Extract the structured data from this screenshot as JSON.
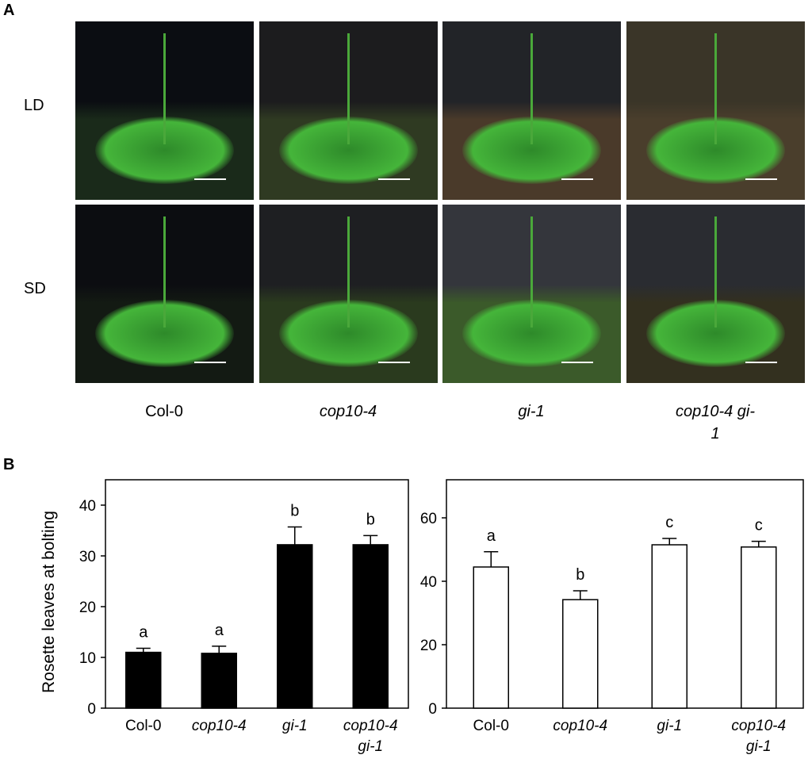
{
  "panel_a": {
    "label": "A",
    "rows": [
      "LD",
      "SD"
    ],
    "columns": [
      "Col-0",
      "cop10-4",
      "gi-1",
      "cop10-4 gi-1"
    ]
  },
  "panel_b_label": "B",
  "chart_data": [
    {
      "type": "bar",
      "y_label": "Rosette leaves at bolting",
      "categories": [
        "Col-0",
        "cop10-4",
        "gi-1",
        "cop10-4 gi-1"
      ],
      "series": [
        {
          "color": "#000000",
          "values": [
            11,
            10.8,
            32.2,
            32.2
          ],
          "errors": [
            0.8,
            1.4,
            3.5,
            1.8
          ]
        }
      ],
      "annotations": [
        "a",
        "a",
        "b",
        "b"
      ],
      "ylim": [
        0,
        45
      ],
      "yticks": [
        0,
        10,
        20,
        30,
        40
      ]
    },
    {
      "type": "bar",
      "categories": [
        "Col-0",
        "cop10-4",
        "gi-1",
        "cop10-4 gi-1"
      ],
      "series": [
        {
          "color": "#ffffff",
          "values": [
            44.5,
            34.2,
            51.5,
            50.8
          ],
          "errors": [
            4.8,
            2.8,
            2,
            1.8
          ]
        }
      ],
      "annotations": [
        "a",
        "b",
        "c",
        "c"
      ],
      "ylim": [
        0,
        72
      ],
      "yticks": [
        0,
        20,
        40,
        60
      ]
    }
  ]
}
